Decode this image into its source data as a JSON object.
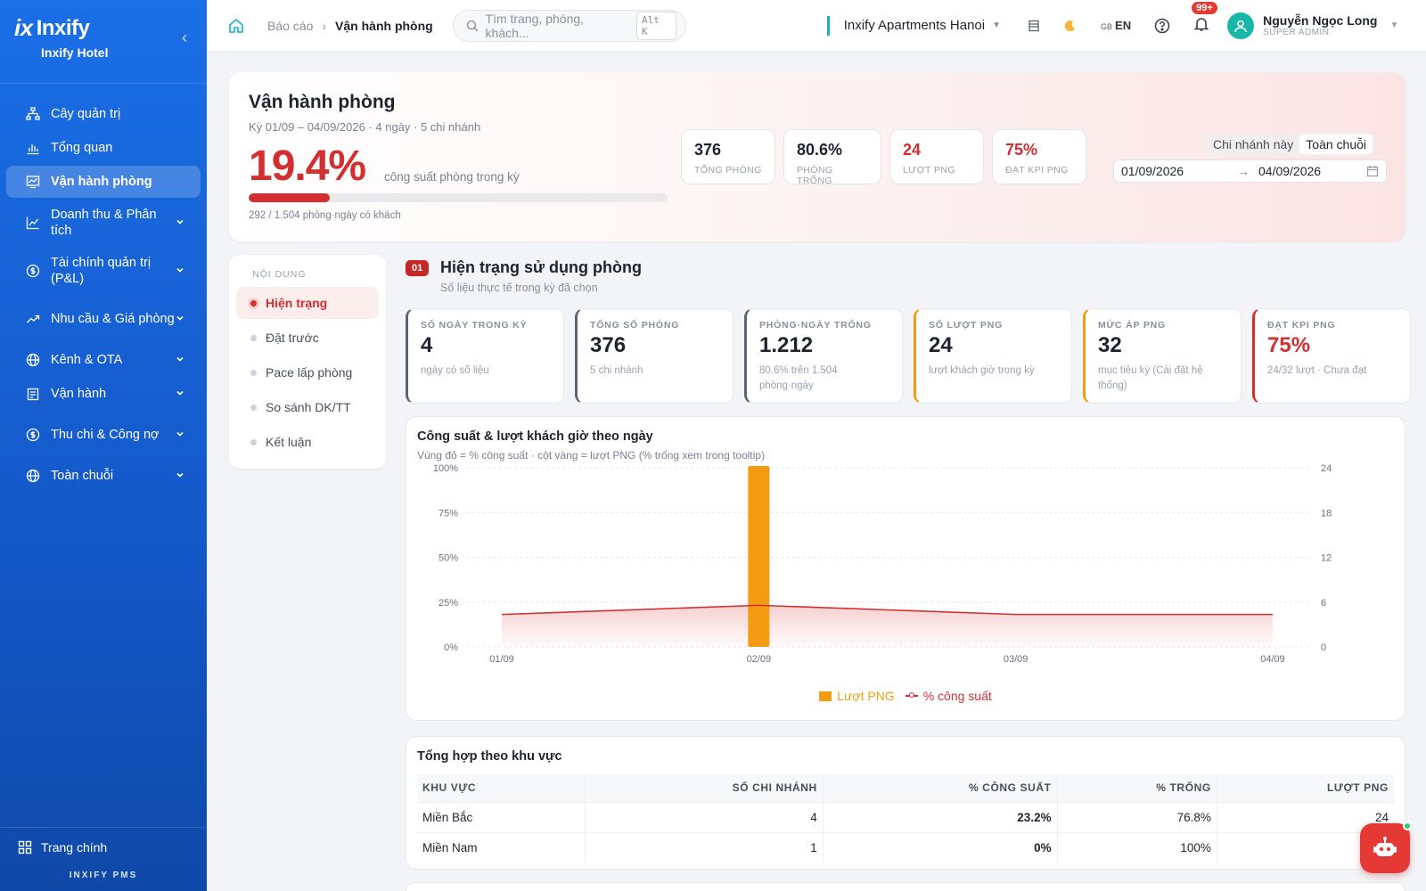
{
  "sidebar": {
    "brand": "Inxify",
    "brand_mark": "ix",
    "hotel": "Inxify Hotel",
    "collapse_icon": "chevron-left-icon",
    "items": [
      {
        "label": "Cây quản trị",
        "icon": "org-tree-icon",
        "active": false,
        "expandable": false
      },
      {
        "label": "Tổng quan",
        "icon": "bar-chart-icon",
        "active": false,
        "expandable": false
      },
      {
        "label": "Vận hành phòng",
        "icon": "monitor-chart-icon",
        "active": true,
        "expandable": false
      },
      {
        "label": "Doanh thu & Phân tích",
        "icon": "line-chart-icon",
        "active": false,
        "expandable": true
      },
      {
        "label": "Tài chính quản trị (P&L)",
        "icon": "dollar-circle-icon",
        "active": false,
        "expandable": true
      },
      {
        "label": "Nhu cầu & Giá phòng",
        "icon": "trend-up-icon",
        "active": false,
        "expandable": true
      },
      {
        "label": "Kênh & OTA",
        "icon": "globe-icon",
        "active": false,
        "expandable": true
      },
      {
        "label": "Vận hành",
        "icon": "clipboard-icon",
        "active": false,
        "expandable": true
      },
      {
        "label": "Thu chi & Công nợ",
        "icon": "dollar-circle-icon",
        "active": false,
        "expandable": true
      },
      {
        "label": "Toàn chuỗi",
        "icon": "globe-icon",
        "active": false,
        "expandable": true
      }
    ],
    "home_label": "Trang chính",
    "footer": "INXIFY PMS"
  },
  "topbar": {
    "breadcrumb_root": "Báo cáo",
    "breadcrumb_current": "Vận hành phòng",
    "search_placeholder": "Tìm trang, phòng, khách...",
    "search_shortcut": "Alt K",
    "property": "Inxify Apartments Hanoi",
    "language": "EN",
    "language_flag": "GB",
    "notifications": "99+",
    "user_name": "Nguyễn Ngọc Long",
    "user_role": "SUPER ADMIN"
  },
  "hero": {
    "title": "Vận hành phòng",
    "subtitle": "Kỳ 01/09 – 04/09/2026 · 4 ngày · 5 chi nhánh",
    "occupancy": "19.4%",
    "occupancy_caption": "công suất phòng trong kỳ",
    "occupancy_fraction": 0.194,
    "footnote": "292 / 1.504 phòng·ngày có khách",
    "kpis": [
      {
        "value": "376",
        "label": "TỔNG PHÒNG",
        "tone": "default"
      },
      {
        "value": "80.6%",
        "label": "PHÒNG TRỐNG",
        "tone": "default"
      },
      {
        "value": "24",
        "label": "LƯỢT PNG",
        "tone": "red"
      },
      {
        "value": "75%",
        "label": "ĐẠT KPI PNG",
        "tone": "red"
      }
    ],
    "scope_options": [
      "Chi nhánh này",
      "Toàn chuỗi"
    ],
    "scope_selected": "Toàn chuỗi",
    "date_from": "01/09/2026",
    "date_to": "04/09/2026"
  },
  "toc": {
    "heading": "NỘI DUNG",
    "items": [
      "Hiện trạng",
      "Đặt trước",
      "Pace lấp phòng",
      "So sánh DK/TT",
      "Kết luận"
    ],
    "active": "Hiện trạng"
  },
  "section": {
    "number": "01",
    "title": "Hiện trạng sử dụng phòng",
    "subtitle": "Số liệu thực tế trong kỳ đã chọn",
    "stats": [
      {
        "label": "SỐ NGÀY TRONG KỲ",
        "value": "4",
        "desc": "ngày có số liệu",
        "tone": "default"
      },
      {
        "label": "TỔNG SỐ PHÒNG",
        "value": "376",
        "desc": "5 chi nhánh",
        "tone": "default"
      },
      {
        "label": "PHÒNG·NGÀY TRỐNG",
        "value": "1.212",
        "desc": "80.6% trên 1.504 phòng·ngày",
        "tone": "default"
      },
      {
        "label": "SỐ LƯỢT PNG",
        "value": "24",
        "desc": "lượt khách giờ trong kỳ",
        "tone": "amber"
      },
      {
        "label": "MỨC ÁP PNG",
        "value": "32",
        "desc": "mục tiêu kỳ (Cài đặt hệ thống)",
        "tone": "amber"
      },
      {
        "label": "ĐẠT KPI PNG",
        "value": "75%",
        "desc": "24/32 lượt · Chưa đạt",
        "tone": "red"
      }
    ]
  },
  "chart_data": {
    "type": "bar",
    "title": "Công suất & lượt khách giờ theo ngày",
    "subtitle": "Vùng đỏ = % công suất · cột vàng = lượt PNG (% trống xem trong tooltip)",
    "categories": [
      "01/09",
      "02/09",
      "03/09",
      "04/09"
    ],
    "series": [
      {
        "name": "Lượt PNG",
        "kind": "bar",
        "axis": "right",
        "color": "#f39c12",
        "values": [
          0,
          24,
          0,
          0
        ]
      },
      {
        "name": "% công suất",
        "kind": "area",
        "axis": "left",
        "color": "#d32f2f",
        "values": [
          18.1,
          23.2,
          18.1,
          18.1
        ]
      }
    ],
    "y_left": {
      "min": 0,
      "max": 100,
      "ticks": [
        0,
        25,
        50,
        75,
        100
      ],
      "tick_labels": [
        "0%",
        "25%",
        "50%",
        "75%",
        "100%"
      ]
    },
    "y_right": {
      "min": 0,
      "max": 24,
      "ticks": [
        0,
        6,
        12,
        18,
        24
      ],
      "tick_labels": [
        "0",
        "6",
        "12",
        "18",
        "24"
      ]
    },
    "grid": true,
    "legend": "bottom"
  },
  "region_table": {
    "title": "Tổng hợp theo khu vực",
    "columns": [
      "KHU VỰC",
      "SỐ CHI NHÁNH",
      "% CÔNG SUẤT",
      "% TRỐNG",
      "LƯỢT PNG"
    ],
    "rows": [
      [
        "Miền Bắc",
        "4",
        "23.2%",
        "76.8%",
        "24"
      ],
      [
        "Miền Nam",
        "1",
        "0%",
        "100%",
        ""
      ]
    ]
  },
  "assistant_icon": "robot-icon"
}
